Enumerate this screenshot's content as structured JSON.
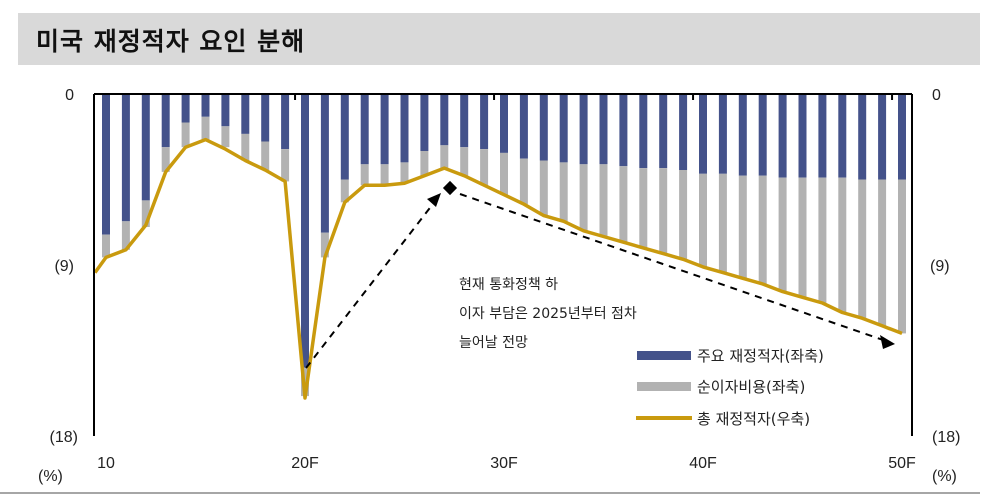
{
  "header": {
    "title": "미국 재정적자 요인 분해"
  },
  "chart_data": {
    "type": "bar",
    "stacked": true,
    "bars_direction": "downward (negative deficit)",
    "x": [
      2010,
      2011,
      2012,
      2013,
      2014,
      2015,
      2016,
      2017,
      2018,
      2019,
      2020,
      2021,
      2022,
      2023,
      2024,
      2025,
      2026,
      2027,
      2028,
      2029,
      2030,
      2031,
      2032,
      2033,
      2034,
      2035,
      2036,
      2037,
      2038,
      2039,
      2040,
      2041,
      2042,
      2043,
      2044,
      2045,
      2046,
      2047,
      2048,
      2049,
      2050
    ],
    "x_tick_labels": [
      {
        "x": 2010,
        "label": "10"
      },
      {
        "x": 2020,
        "label": "20F"
      },
      {
        "x": 2030,
        "label": "30F"
      },
      {
        "x": 2040,
        "label": "40F"
      },
      {
        "x": 2050,
        "label": "50F"
      }
    ],
    "y_left": {
      "ticks": [
        "0",
        "(9)",
        "(18)"
      ],
      "range": [
        0,
        18
      ],
      "unit": "(%)"
    },
    "y_right": {
      "ticks": [
        "0",
        "(9)",
        "(18)"
      ],
      "range": [
        0,
        18
      ],
      "unit": "(%)"
    },
    "series": [
      {
        "name": "주요 재정적자(좌축)",
        "type": "bar",
        "color": "#44528a",
        "values": [
          7.4,
          6.7,
          5.6,
          2.8,
          1.5,
          1.2,
          1.7,
          2.1,
          2.5,
          2.9,
          14.4,
          7.3,
          4.5,
          3.7,
          3.7,
          3.6,
          3.0,
          2.7,
          2.8,
          2.9,
          3.1,
          3.4,
          3.5,
          3.6,
          3.7,
          3.7,
          3.8,
          3.9,
          3.9,
          4.0,
          4.2,
          4.2,
          4.3,
          4.3,
          4.4,
          4.4,
          4.4,
          4.4,
          4.5,
          4.5,
          4.5
        ]
      },
      {
        "name": "순이자비용(좌축)",
        "type": "bar",
        "color": "#b2b2b2",
        "values": [
          1.2,
          1.5,
          1.4,
          1.3,
          1.3,
          1.2,
          1.1,
          1.4,
          1.5,
          1.7,
          1.5,
          1.3,
          1.2,
          1.1,
          1.1,
          1.1,
          1.3,
          1.2,
          1.5,
          1.9,
          2.2,
          2.4,
          2.9,
          3.1,
          3.5,
          3.8,
          4.0,
          4.2,
          4.5,
          4.7,
          4.9,
          5.2,
          5.4,
          5.7,
          6.0,
          6.3,
          6.6,
          7.1,
          7.3,
          7.7,
          8.1
        ]
      },
      {
        "name": "총 재정적자(우축)",
        "type": "line",
        "color": "#c99a0e",
        "values": [
          8.6,
          8.2,
          6.9,
          4.1,
          2.8,
          2.4,
          2.9,
          3.5,
          4.0,
          4.6,
          16.0,
          8.6,
          5.7,
          4.8,
          4.8,
          4.7,
          4.3,
          3.9,
          4.3,
          4.8,
          5.3,
          5.8,
          6.4,
          6.7,
          7.2,
          7.5,
          7.8,
          8.1,
          8.4,
          8.7,
          9.1,
          9.4,
          9.7,
          10.0,
          10.4,
          10.7,
          11.0,
          11.5,
          11.8,
          12.2,
          12.6
        ]
      }
    ],
    "legend_position": "bottom-right inside plot",
    "annotation": {
      "lines": [
        "현재 통화정책 하",
        "이자 부담은 2025년부터  점차",
        "늘어날 전망"
      ]
    },
    "grid": false
  }
}
